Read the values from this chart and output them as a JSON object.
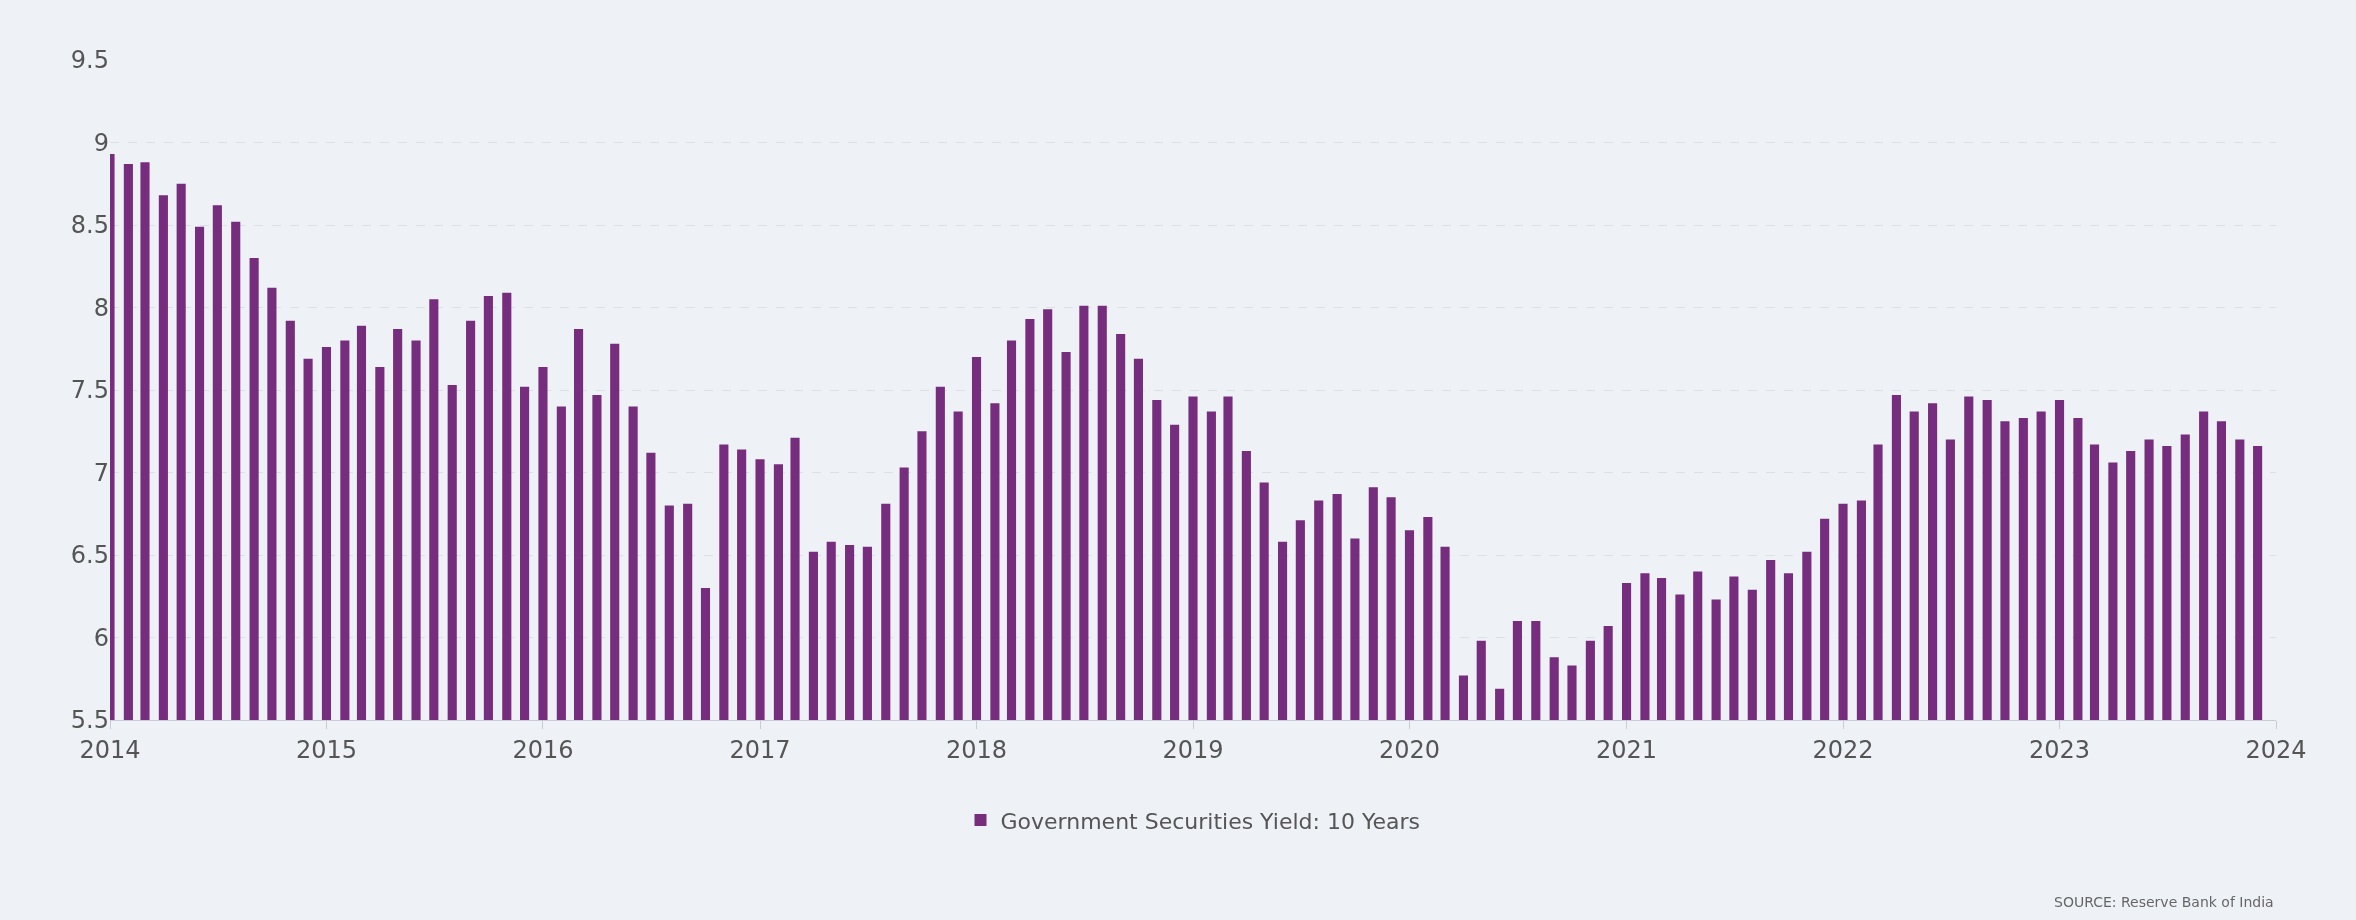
{
  "chart_data": {
    "type": "bar",
    "x": [
      "2014-01",
      "2014-02",
      "2014-03",
      "2014-04",
      "2014-05",
      "2014-06",
      "2014-07",
      "2014-08",
      "2014-09",
      "2014-10",
      "2014-11",
      "2014-12",
      "2015-01",
      "2015-02",
      "2015-03",
      "2015-04",
      "2015-05",
      "2015-06",
      "2015-07",
      "2015-08",
      "2015-09",
      "2015-10",
      "2015-11",
      "2015-12",
      "2016-01",
      "2016-02",
      "2016-03",
      "2016-04",
      "2016-05",
      "2016-06",
      "2016-07",
      "2016-08",
      "2016-09",
      "2016-10",
      "2016-11",
      "2016-12",
      "2017-01",
      "2017-02",
      "2017-03",
      "2017-04",
      "2017-05",
      "2017-06",
      "2017-07",
      "2017-08",
      "2017-09",
      "2017-10",
      "2017-11",
      "2017-12",
      "2018-01",
      "2018-02",
      "2018-03",
      "2018-04",
      "2018-05",
      "2018-06",
      "2018-07",
      "2018-08",
      "2018-09",
      "2018-10",
      "2018-11",
      "2018-12",
      "2019-01",
      "2019-02",
      "2019-03",
      "2019-04",
      "2019-05",
      "2019-06",
      "2019-07",
      "2019-08",
      "2019-09",
      "2019-10",
      "2019-11",
      "2019-12",
      "2020-01",
      "2020-02",
      "2020-03",
      "2020-04",
      "2020-05",
      "2020-06",
      "2020-07",
      "2020-08",
      "2020-09",
      "2020-10",
      "2020-11",
      "2020-12",
      "2021-01",
      "2021-02",
      "2021-03",
      "2021-04",
      "2021-05",
      "2021-06",
      "2021-07",
      "2021-08",
      "2021-09",
      "2021-10",
      "2021-11",
      "2021-12",
      "2022-01",
      "2022-02",
      "2022-03",
      "2022-04",
      "2022-05",
      "2022-06",
      "2022-07",
      "2022-08",
      "2022-09",
      "2022-10",
      "2022-11",
      "2022-12",
      "2023-01",
      "2023-02",
      "2023-03",
      "2023-04",
      "2023-05",
      "2023-06",
      "2023-07",
      "2023-08",
      "2023-09",
      "2023-10",
      "2023-11",
      "2023-12"
    ],
    "series": [
      {
        "name": "Government Securities Yield: 10 Years",
        "color": "#772d7d",
        "values": [
          8.93,
          8.87,
          8.88,
          8.68,
          8.75,
          8.49,
          8.62,
          8.52,
          8.3,
          8.12,
          7.92,
          7.69,
          7.76,
          7.8,
          7.89,
          7.64,
          7.87,
          7.8,
          8.05,
          7.53,
          7.92,
          8.07,
          8.09,
          7.52,
          7.64,
          7.4,
          7.87,
          7.47,
          7.78,
          7.4,
          7.12,
          6.8,
          6.81,
          6.3,
          7.17,
          7.14,
          7.08,
          7.05,
          7.21,
          6.52,
          6.58,
          6.56,
          6.55,
          6.81,
          7.03,
          7.25,
          7.52,
          7.37,
          7.7,
          7.42,
          7.8,
          7.93,
          7.99,
          7.73,
          8.01,
          8.01,
          7.84,
          7.69,
          7.44,
          7.29,
          7.46,
          7.37,
          7.46,
          7.13,
          6.94,
          6.58,
          6.71,
          6.83,
          6.87,
          6.6,
          6.91,
          6.85,
          6.65,
          6.73,
          6.55,
          5.77,
          5.98,
          5.69,
          6.1,
          6.1,
          5.88,
          5.83,
          5.98,
          6.07,
          6.33,
          6.39,
          6.36,
          6.26,
          6.4,
          6.23,
          6.37,
          6.29,
          6.47,
          6.39,
          6.52,
          6.72,
          6.81,
          6.83,
          7.17,
          7.47,
          7.37,
          7.42,
          7.2,
          7.46,
          7.44,
          7.31,
          7.33,
          7.37,
          7.44,
          7.33,
          7.17,
          7.06,
          7.13,
          7.2,
          7.16,
          7.23,
          7.37,
          7.31,
          7.2,
          7.16
        ]
      }
    ],
    "xlim": [
      "2014",
      "2024"
    ],
    "xticks": [
      "2014",
      "2015",
      "2016",
      "2017",
      "2018",
      "2019",
      "2020",
      "2021",
      "2022",
      "2023",
      "2024"
    ],
    "ylim": [
      5.5,
      9.5
    ],
    "yticks": [
      5.5,
      6,
      6.5,
      7,
      7.5,
      8,
      8.5,
      9,
      9.5
    ],
    "grid": "y",
    "legend": "bottom",
    "annotations": [
      "SOURCE: Reserve Bank of India"
    ]
  }
}
